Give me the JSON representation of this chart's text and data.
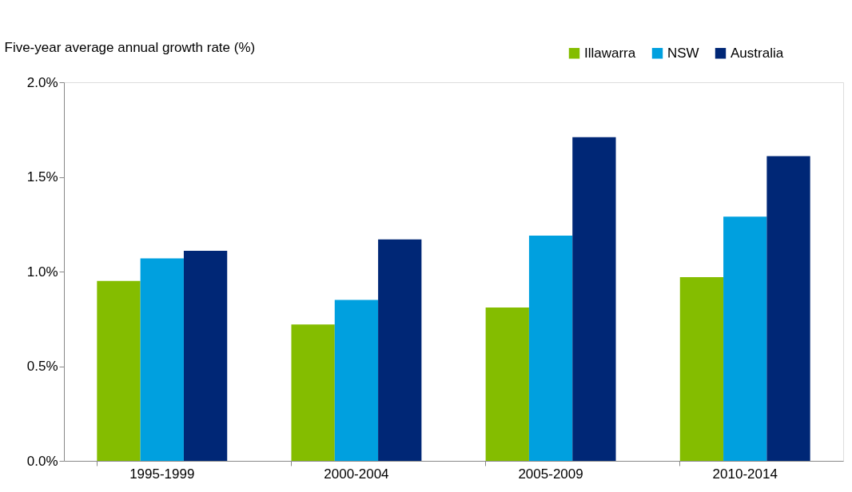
{
  "chart_data": {
    "type": "bar",
    "ylabel": "Five-year average annual growth rate (%)",
    "categories": [
      "1995-1999",
      "2000-2004",
      "2005-2009",
      "2010-2014"
    ],
    "series": [
      {
        "name": "Illawarra",
        "color": "#84bd00",
        "values": [
          0.95,
          0.72,
          0.81,
          0.97
        ]
      },
      {
        "name": "NSW",
        "color": "#00a0df",
        "values": [
          1.07,
          0.85,
          1.19,
          1.29
        ]
      },
      {
        "name": "Australia",
        "color": "#002776",
        "values": [
          1.11,
          1.17,
          1.71,
          1.61
        ]
      }
    ],
    "ylim": [
      0,
      2.0
    ],
    "yticks": [
      {
        "value": 0,
        "label": "0.0%"
      },
      {
        "value": 0.5,
        "label": "0.5%"
      },
      {
        "value": 1.0,
        "label": "1.0%"
      },
      {
        "value": 1.5,
        "label": "1.5%"
      },
      {
        "value": 2.0,
        "label": "2.0%"
      }
    ],
    "grid": false,
    "legend": "top right"
  }
}
